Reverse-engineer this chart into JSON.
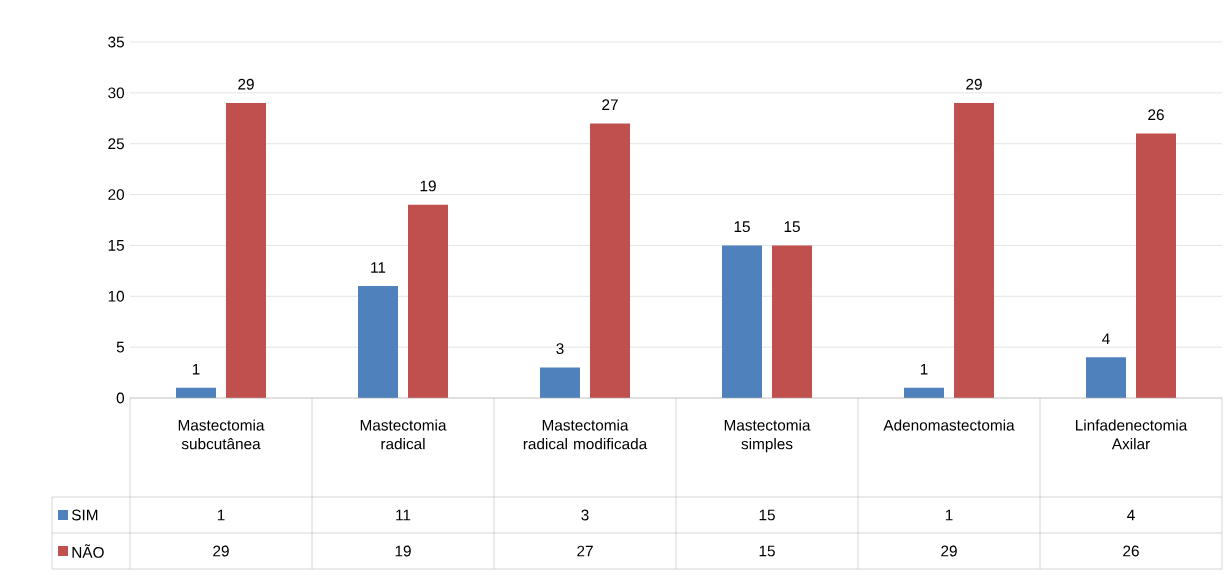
{
  "chart_data": {
    "type": "bar",
    "categories": [
      "Mastectomia subcutânea",
      "Mastectomia radical",
      "Mastectomia radical modificada",
      "Mastectomia simples",
      "Adenomastectomia",
      "Linfadenectomia Axilar"
    ],
    "series": [
      {
        "name": "SIM",
        "color": "#4f81bd",
        "values": [
          1,
          11,
          3,
          15,
          1,
          4
        ],
        "value_labels": [
          "1",
          "11",
          "3",
          "15",
          "1",
          "4"
        ]
      },
      {
        "name": "NÃO",
        "color": "#c0504d",
        "values": [
          29,
          19,
          27,
          15,
          29,
          26
        ],
        "value_labels": [
          "29",
          "19",
          "27",
          "15",
          "29",
          "26"
        ]
      }
    ],
    "ylim": [
      0,
      35
    ],
    "yticks": [
      0,
      5,
      10,
      15,
      20,
      25,
      30,
      35
    ],
    "grid": "y",
    "data_labels": true,
    "legend": "bottom"
  }
}
